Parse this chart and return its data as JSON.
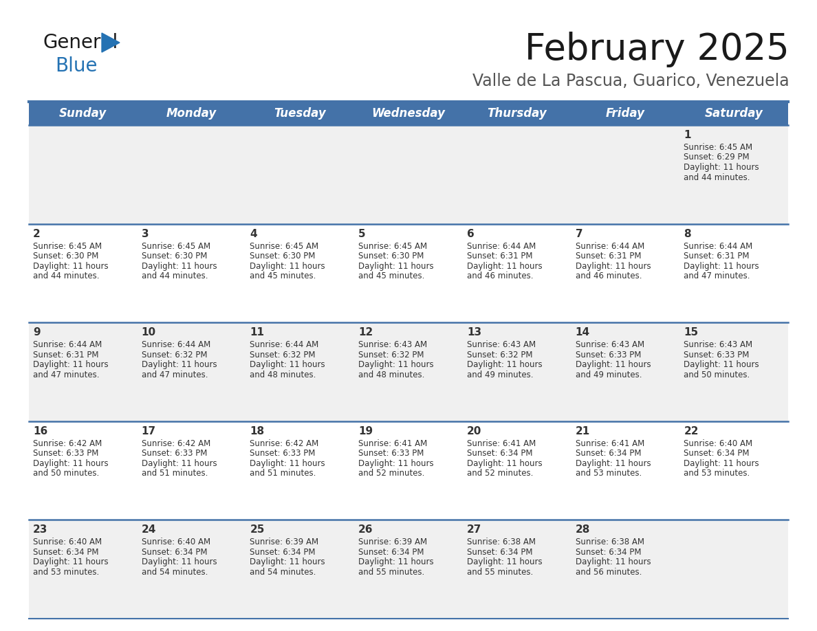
{
  "title": "February 2025",
  "subtitle": "Valle de La Pascua, Guarico, Venezuela",
  "header_color": "#4472a8",
  "header_text_color": "#ffffff",
  "bg_color": "#ffffff",
  "cell_bg_odd": "#f0f0f0",
  "cell_bg_even": "#ffffff",
  "text_color": "#333333",
  "separator_color": "#4472a8",
  "days_of_week": [
    "Sunday",
    "Monday",
    "Tuesday",
    "Wednesday",
    "Thursday",
    "Friday",
    "Saturday"
  ],
  "weeks": [
    [
      {
        "day": null,
        "sunrise": null,
        "sunset": null,
        "daylight": null
      },
      {
        "day": null,
        "sunrise": null,
        "sunset": null,
        "daylight": null
      },
      {
        "day": null,
        "sunrise": null,
        "sunset": null,
        "daylight": null
      },
      {
        "day": null,
        "sunrise": null,
        "sunset": null,
        "daylight": null
      },
      {
        "day": null,
        "sunrise": null,
        "sunset": null,
        "daylight": null
      },
      {
        "day": null,
        "sunrise": null,
        "sunset": null,
        "daylight": null
      },
      {
        "day": 1,
        "sunrise": "6:45 AM",
        "sunset": "6:29 PM",
        "daylight": "11 hours and 44 minutes."
      }
    ],
    [
      {
        "day": 2,
        "sunrise": "6:45 AM",
        "sunset": "6:30 PM",
        "daylight": "11 hours and 44 minutes."
      },
      {
        "day": 3,
        "sunrise": "6:45 AM",
        "sunset": "6:30 PM",
        "daylight": "11 hours and 44 minutes."
      },
      {
        "day": 4,
        "sunrise": "6:45 AM",
        "sunset": "6:30 PM",
        "daylight": "11 hours and 45 minutes."
      },
      {
        "day": 5,
        "sunrise": "6:45 AM",
        "sunset": "6:30 PM",
        "daylight": "11 hours and 45 minutes."
      },
      {
        "day": 6,
        "sunrise": "6:44 AM",
        "sunset": "6:31 PM",
        "daylight": "11 hours and 46 minutes."
      },
      {
        "day": 7,
        "sunrise": "6:44 AM",
        "sunset": "6:31 PM",
        "daylight": "11 hours and 46 minutes."
      },
      {
        "day": 8,
        "sunrise": "6:44 AM",
        "sunset": "6:31 PM",
        "daylight": "11 hours and 47 minutes."
      }
    ],
    [
      {
        "day": 9,
        "sunrise": "6:44 AM",
        "sunset": "6:31 PM",
        "daylight": "11 hours and 47 minutes."
      },
      {
        "day": 10,
        "sunrise": "6:44 AM",
        "sunset": "6:32 PM",
        "daylight": "11 hours and 47 minutes."
      },
      {
        "day": 11,
        "sunrise": "6:44 AM",
        "sunset": "6:32 PM",
        "daylight": "11 hours and 48 minutes."
      },
      {
        "day": 12,
        "sunrise": "6:43 AM",
        "sunset": "6:32 PM",
        "daylight": "11 hours and 48 minutes."
      },
      {
        "day": 13,
        "sunrise": "6:43 AM",
        "sunset": "6:32 PM",
        "daylight": "11 hours and 49 minutes."
      },
      {
        "day": 14,
        "sunrise": "6:43 AM",
        "sunset": "6:33 PM",
        "daylight": "11 hours and 49 minutes."
      },
      {
        "day": 15,
        "sunrise": "6:43 AM",
        "sunset": "6:33 PM",
        "daylight": "11 hours and 50 minutes."
      }
    ],
    [
      {
        "day": 16,
        "sunrise": "6:42 AM",
        "sunset": "6:33 PM",
        "daylight": "11 hours and 50 minutes."
      },
      {
        "day": 17,
        "sunrise": "6:42 AM",
        "sunset": "6:33 PM",
        "daylight": "11 hours and 51 minutes."
      },
      {
        "day": 18,
        "sunrise": "6:42 AM",
        "sunset": "6:33 PM",
        "daylight": "11 hours and 51 minutes."
      },
      {
        "day": 19,
        "sunrise": "6:41 AM",
        "sunset": "6:33 PM",
        "daylight": "11 hours and 52 minutes."
      },
      {
        "day": 20,
        "sunrise": "6:41 AM",
        "sunset": "6:34 PM",
        "daylight": "11 hours and 52 minutes."
      },
      {
        "day": 21,
        "sunrise": "6:41 AM",
        "sunset": "6:34 PM",
        "daylight": "11 hours and 53 minutes."
      },
      {
        "day": 22,
        "sunrise": "6:40 AM",
        "sunset": "6:34 PM",
        "daylight": "11 hours and 53 minutes."
      }
    ],
    [
      {
        "day": 23,
        "sunrise": "6:40 AM",
        "sunset": "6:34 PM",
        "daylight": "11 hours and 53 minutes."
      },
      {
        "day": 24,
        "sunrise": "6:40 AM",
        "sunset": "6:34 PM",
        "daylight": "11 hours and 54 minutes."
      },
      {
        "day": 25,
        "sunrise": "6:39 AM",
        "sunset": "6:34 PM",
        "daylight": "11 hours and 54 minutes."
      },
      {
        "day": 26,
        "sunrise": "6:39 AM",
        "sunset": "6:34 PM",
        "daylight": "11 hours and 55 minutes."
      },
      {
        "day": 27,
        "sunrise": "6:38 AM",
        "sunset": "6:34 PM",
        "daylight": "11 hours and 55 minutes."
      },
      {
        "day": 28,
        "sunrise": "6:38 AM",
        "sunset": "6:34 PM",
        "daylight": "11 hours and 56 minutes."
      },
      {
        "day": null,
        "sunrise": null,
        "sunset": null,
        "daylight": null
      }
    ]
  ],
  "title_fontsize": 38,
  "subtitle_fontsize": 17,
  "header_fontsize": 12,
  "day_num_fontsize": 11,
  "cell_text_fontsize": 8.5
}
